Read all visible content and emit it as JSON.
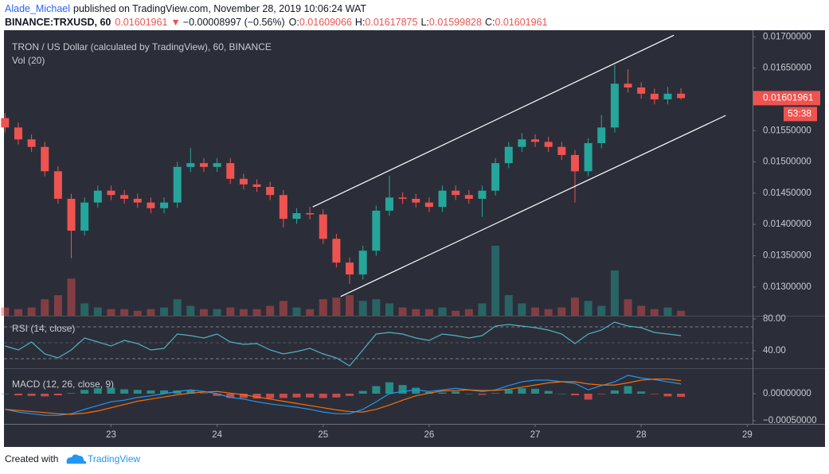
{
  "header": {
    "author": "Alade_Michael",
    "published": "published on TradingView.com, November 28, 2019 10:06:24 WAT",
    "symbol": "BINANCE:TRXUSD, 60",
    "change_arrow": "▼",
    "change": "−0.00008997 (−0.56%)",
    "ohlc_labels": [
      "O:",
      "H:",
      "L:",
      "C:"
    ],
    "countdown": "53:38"
  },
  "footer": {
    "created_with": "Created with",
    "brand": "TradingView"
  },
  "chart_data": [
    {
      "type": "candlestick",
      "title": "TRON / US Dollar (calculated by TradingView), 60, BINANCE",
      "volume_title": "Vol (20)",
      "x": [
        22,
        22.125,
        22.25,
        22.375,
        22.5,
        22.625,
        22.75,
        22.875,
        23,
        23.125,
        23.25,
        23.375,
        23.5,
        23.625,
        23.75,
        23.875,
        24,
        24.125,
        24.25,
        24.375,
        24.5,
        24.625,
        24.75,
        24.875,
        25,
        25.125,
        25.25,
        25.375,
        25.5,
        25.625,
        25.75,
        25.875,
        26,
        26.125,
        26.25,
        26.375,
        26.5,
        26.625,
        26.75,
        26.875,
        27,
        27.125,
        27.25,
        27.375,
        27.5,
        27.625,
        27.75,
        27.875,
        28,
        28.125,
        28.25,
        28.375
      ],
      "open": [
        0.0157,
        0.01555,
        0.01536,
        0.01524,
        0.01485,
        0.01441,
        0.0139,
        0.01435,
        0.01454,
        0.01447,
        0.01441,
        0.01435,
        0.01426,
        0.01435,
        0.01492,
        0.01498,
        0.01492,
        0.01498,
        0.01473,
        0.01464,
        0.0146,
        0.01447,
        0.01409,
        0.01418,
        0.01416,
        0.01377,
        0.01339,
        0.0132,
        0.01358,
        0.01422,
        0.01443,
        0.01441,
        0.01435,
        0.01428,
        0.01454,
        0.01447,
        0.01441,
        0.01454,
        0.01498,
        0.01524,
        0.01536,
        0.01532,
        0.01524,
        0.01511,
        0.01485,
        0.0153,
        0.01555,
        0.01625,
        0.01619,
        0.01609,
        0.016,
        0.01609066
      ],
      "high": [
        0.01578,
        0.01563,
        0.01544,
        0.01532,
        0.01493,
        0.01449,
        0.01443,
        0.01462,
        0.01462,
        0.01455,
        0.01449,
        0.01443,
        0.01443,
        0.015,
        0.01522,
        0.01506,
        0.01506,
        0.01506,
        0.01481,
        0.01472,
        0.01468,
        0.01455,
        0.01426,
        0.01428,
        0.01424,
        0.01385,
        0.01347,
        0.01366,
        0.0143,
        0.01478,
        0.01451,
        0.01449,
        0.01443,
        0.01462,
        0.01462,
        0.01455,
        0.01462,
        0.01506,
        0.01532,
        0.01546,
        0.01544,
        0.0154,
        0.01532,
        0.01519,
        0.01538,
        0.01575,
        0.01655,
        0.01648,
        0.01627,
        0.01617,
        0.0162,
        0.01617875
      ],
      "low": [
        0.01547,
        0.01528,
        0.01516,
        0.01477,
        0.01433,
        0.01346,
        0.01382,
        0.01427,
        0.01439,
        0.01433,
        0.01427,
        0.01418,
        0.01418,
        0.01427,
        0.01484,
        0.01484,
        0.01484,
        0.01465,
        0.01456,
        0.01452,
        0.01439,
        0.01395,
        0.01401,
        0.01408,
        0.01369,
        0.01331,
        0.01305,
        0.01312,
        0.0135,
        0.01414,
        0.01433,
        0.01427,
        0.0142,
        0.0142,
        0.01439,
        0.01433,
        0.01412,
        0.01446,
        0.0149,
        0.01516,
        0.01524,
        0.01516,
        0.01503,
        0.01435,
        0.01477,
        0.01522,
        0.01547,
        0.01611,
        0.01601,
        0.01592,
        0.01592,
        0.01599828
      ],
      "close": [
        0.01555,
        0.01536,
        0.01524,
        0.01485,
        0.01441,
        0.0139,
        0.01435,
        0.01454,
        0.01447,
        0.01441,
        0.01435,
        0.01426,
        0.01435,
        0.01492,
        0.01498,
        0.01492,
        0.01498,
        0.01473,
        0.01464,
        0.0146,
        0.01447,
        0.01409,
        0.01418,
        0.01416,
        0.01377,
        0.01339,
        0.0132,
        0.01358,
        0.01422,
        0.01443,
        0.01441,
        0.01435,
        0.01428,
        0.01454,
        0.01447,
        0.01441,
        0.01454,
        0.01498,
        0.01524,
        0.01536,
        0.01532,
        0.01524,
        0.01511,
        0.01485,
        0.0153,
        0.01555,
        0.01625,
        0.01619,
        0.01609,
        0.016,
        0.01609,
        0.01601961
      ],
      "volume": [
        10,
        8,
        10,
        20,
        25,
        45,
        15,
        10,
        8,
        8,
        6,
        8,
        10,
        20,
        12,
        8,
        8,
        10,
        8,
        8,
        12,
        18,
        10,
        8,
        20,
        22,
        25,
        18,
        20,
        15,
        10,
        8,
        8,
        10,
        6,
        8,
        15,
        85,
        25,
        15,
        10,
        8,
        10,
        22,
        18,
        12,
        55,
        20,
        12,
        8,
        10,
        6
      ],
      "xlim": [
        21.99,
        29.05
      ],
      "xticks": [
        23,
        24,
        25,
        26,
        27,
        28,
        29
      ],
      "ylim": [
        0.01254,
        0.01708
      ],
      "yticks": [
        {
          "value": 0.013,
          "label": "0.01300000"
        },
        {
          "value": 0.0135,
          "label": "0.01350000"
        },
        {
          "value": 0.014,
          "label": "0.01400000"
        },
        {
          "value": 0.0145,
          "label": "0.01450000"
        },
        {
          "value": 0.015,
          "label": "0.01500000"
        },
        {
          "value": 0.0155,
          "label": "0.01550000"
        },
        {
          "value": 0.016,
          "label": "0.01600000"
        },
        {
          "value": 0.0165,
          "label": "0.01650000"
        },
        {
          "value": 0.017,
          "label": "0.01700000"
        }
      ],
      "up_color": "#26a69a",
      "down_color": "#ef5350",
      "trendlines": [
        [
          [
            24.902,
            0.01428
          ],
          [
            28.308,
            0.017025
          ]
        ],
        [
          [
            25.165,
            0.012848
          ],
          [
            28.797,
            0.015743
          ]
        ]
      ],
      "trendline_color": "#ffffff"
    },
    {
      "type": "line",
      "title": "RSI (14, close)",
      "values": [
        46,
        41,
        51,
        36,
        31,
        41,
        56,
        51,
        46,
        53,
        49,
        41,
        43,
        61,
        59,
        56,
        61,
        51,
        48,
        49,
        41,
        36,
        39,
        43,
        36,
        31,
        21,
        41,
        61,
        63,
        61,
        56,
        53,
        61,
        59,
        56,
        59,
        71,
        73,
        71,
        69,
        66,
        61,
        49,
        61,
        66,
        76,
        71,
        69,
        63,
        61,
        59
      ],
      "color": "#4fb3bf",
      "ylim": [
        19,
        83
      ],
      "yticks": [
        {
          "value": 80,
          "label": "80.00"
        },
        {
          "value": 40,
          "label": "40.00"
        }
      ],
      "bands": [
        70,
        50,
        30
      ]
    },
    {
      "type": "macd",
      "title": "MACD (12, 26, close, 9)",
      "macd": [
        -0.00029,
        -0.00034,
        -0.00037,
        -0.0004,
        -0.0004,
        -0.00037,
        -0.00029,
        -0.00022,
        -0.00015,
        -0.00012,
        -7e-05,
        -4e-05,
        0,
        4e-05,
        7e-05,
        4e-05,
        0,
        -7e-05,
        -0.0001,
        -0.00015,
        -0.00019,
        -0.00022,
        -0.00025,
        -0.00029,
        -0.00034,
        -0.00037,
        -0.00037,
        -0.00029,
        -0.00015,
        0,
        4e-05,
        7e-05,
        4e-05,
        7e-05,
        0.0001,
        7e-05,
        4e-05,
        7e-05,
        0.00015,
        0.00022,
        0.00025,
        0.00025,
        0.00022,
        0.00019,
        7e-05,
        0.00015,
        0.00022,
        0.00034,
        0.00029,
        0.00026,
        0.00022,
        0.00018
      ],
      "signal": [
        -0.00029,
        -0.00031,
        -0.00033,
        -0.00035,
        -0.00037,
        -0.00038,
        -0.00036,
        -0.00032,
        -0.00026,
        -0.0002,
        -0.00014,
        -0.0001,
        -6e-05,
        -2e-05,
        1e-05,
        3e-05,
        4e-05,
        1e-05,
        -2e-05,
        -6e-05,
        -0.0001,
        -0.00014,
        -0.00018,
        -0.00022,
        -0.00026,
        -0.0003,
        -0.00033,
        -0.00034,
        -0.00029,
        -0.00021,
        -0.00012,
        -4e-05,
        1e-05,
        5e-05,
        6e-05,
        7e-05,
        6e-05,
        6e-05,
        8e-05,
        0.00012,
        0.00016,
        0.0002,
        0.00022,
        0.00022,
        0.00018,
        0.00016,
        0.00016,
        0.0002,
        0.00025,
        0.00027,
        0.00027,
        0.00024
      ],
      "histogram": [
        0,
        -3e-05,
        -4e-05,
        -5e-05,
        -3e-05,
        1e-05,
        7e-05,
        0.0001,
        0.00011,
        8e-05,
        7e-05,
        6e-05,
        6e-05,
        6e-05,
        6e-05,
        1e-05,
        -4e-05,
        -8e-05,
        -8e-05,
        -9e-05,
        -9e-05,
        -8e-05,
        -7e-05,
        -7e-05,
        -8e-05,
        -7e-05,
        -4e-05,
        5e-05,
        0.00014,
        0.00021,
        0.00016,
        0.00011,
        3e-05,
        2e-05,
        4e-05,
        0,
        -2e-05,
        1e-05,
        7e-05,
        0.0001,
        9e-05,
        5e-05,
        0,
        -3e-05,
        -0.00011,
        -1e-05,
        6e-05,
        0.00014,
        4e-05,
        -1e-05,
        -5e-05,
        -6e-05
      ],
      "macd_color": "#2196f3",
      "signal_color": "#ff6d00",
      "up_color": "#26a69a",
      "down_color": "#ef5350",
      "ylim": [
        -0.000544,
        0.000441
      ],
      "yticks": [
        {
          "value": 0,
          "label": "0.00000000"
        },
        {
          "value": -0.0005,
          "label": "−0.00050000"
        }
      ]
    }
  ]
}
